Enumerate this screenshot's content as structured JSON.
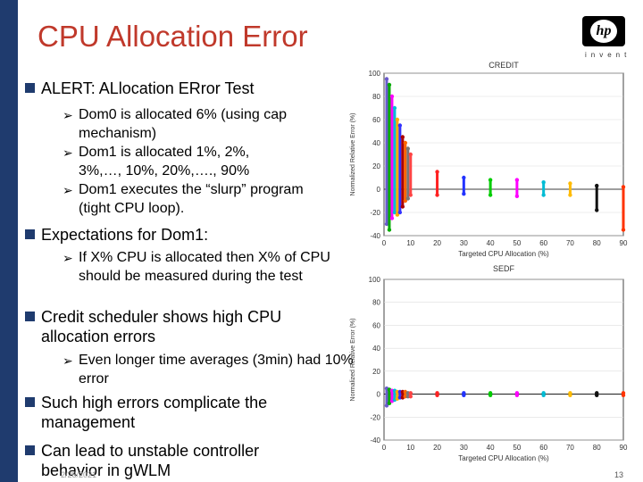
{
  "slide": {
    "title": "CPU Allocation Error",
    "logo_text": "hp",
    "logo_word": "invent",
    "date": "2/28/2021",
    "page_number": "13"
  },
  "bullets": [
    {
      "text": "ALERT:  ALlocation ERror Test",
      "sub": [
        "Dom0 is allocated 6% (using cap mechanism)",
        "Dom1 is allocated 1%, 2%, 3%,…, 10%, 20%,…., 90%",
        "Dom1 executes the “slurp” program (tight CPU loop)."
      ]
    },
    {
      "text": "Expectations for Dom1:",
      "sub": [
        "If X% CPU is allocated then X% of CPU should be measured during the test"
      ]
    },
    {
      "text": "Credit scheduler shows  high CPU allocation errors",
      "sub": [
        "Even longer time averages (3min) had 10% error"
      ]
    },
    {
      "text": " Such high errors complicate the management",
      "sub": []
    },
    {
      "text": "Can lead to unstable controller behavior in gWLM",
      "sub": []
    }
  ],
  "chart_data": [
    {
      "type": "scatter",
      "title": "CREDIT",
      "xlabel": "Targeted CPU Allocation (%)",
      "ylabel": "Normalized Relative Error (%)",
      "xlim": [
        0,
        90
      ],
      "ylim": [
        -40,
        100
      ],
      "xticks": [
        0,
        10,
        20,
        30,
        40,
        50,
        60,
        70,
        80,
        90
      ],
      "yticks": [
        -40,
        -20,
        0,
        20,
        40,
        60,
        80,
        100
      ],
      "series": [
        {
          "x": 1,
          "values": [
            -30,
            95
          ],
          "color": "#6a5acd"
        },
        {
          "x": 2,
          "values": [
            -35,
            90
          ],
          "color": "#00aa00"
        },
        {
          "x": 3,
          "values": [
            -25,
            80
          ],
          "color": "#ff00ff"
        },
        {
          "x": 4,
          "values": [
            -20,
            70
          ],
          "color": "#00bcd4"
        },
        {
          "x": 5,
          "values": [
            -22,
            60
          ],
          "color": "#ffaa00"
        },
        {
          "x": 6,
          "values": [
            -20,
            55
          ],
          "color": "#3333ff"
        },
        {
          "x": 7,
          "values": [
            -15,
            45
          ],
          "color": "#aa0000"
        },
        {
          "x": 8,
          "values": [
            -10,
            40
          ],
          "color": "#ff6600"
        },
        {
          "x": 9,
          "values": [
            -8,
            35
          ],
          "color": "#777777"
        },
        {
          "x": 10,
          "values": [
            -5,
            30
          ],
          "color": "#ff4444"
        },
        {
          "x": 20,
          "values": [
            -5,
            15
          ],
          "color": "#ff2222"
        },
        {
          "x": 30,
          "values": [
            -4,
            10
          ],
          "color": "#2233ff"
        },
        {
          "x": 40,
          "values": [
            -5,
            8
          ],
          "color": "#00cc00"
        },
        {
          "x": 50,
          "values": [
            -6,
            8
          ],
          "color": "#ff00ff"
        },
        {
          "x": 60,
          "values": [
            -5,
            6
          ],
          "color": "#00bcd4"
        },
        {
          "x": 70,
          "values": [
            -5,
            5
          ],
          "color": "#ffbb00"
        },
        {
          "x": 80,
          "values": [
            -18,
            3
          ],
          "color": "#111111"
        },
        {
          "x": 90,
          "values": [
            -35,
            2
          ],
          "color": "#ff3300"
        }
      ]
    },
    {
      "type": "scatter",
      "title": "SEDF",
      "xlabel": "Targeted  CPU Allocation (%)",
      "ylabel": "Normalized Relative Error (%)",
      "xlim": [
        0,
        90
      ],
      "ylim": [
        -40,
        100
      ],
      "xticks": [
        0,
        10,
        20,
        30,
        40,
        50,
        60,
        70,
        80,
        90
      ],
      "yticks": [
        -40,
        -20,
        0,
        20,
        40,
        60,
        80,
        100
      ],
      "series": [
        {
          "x": 1,
          "values": [
            -10,
            5
          ],
          "color": "#6a5acd"
        },
        {
          "x": 2,
          "values": [
            -8,
            4
          ],
          "color": "#00aa00"
        },
        {
          "x": 3,
          "values": [
            -6,
            3
          ],
          "color": "#ff00ff"
        },
        {
          "x": 4,
          "values": [
            -5,
            3
          ],
          "color": "#00bcd4"
        },
        {
          "x": 5,
          "values": [
            -4,
            2
          ],
          "color": "#ffaa00"
        },
        {
          "x": 6,
          "values": [
            -3,
            2
          ],
          "color": "#3333ff"
        },
        {
          "x": 7,
          "values": [
            -3,
            2
          ],
          "color": "#aa0000"
        },
        {
          "x": 8,
          "values": [
            -2,
            2
          ],
          "color": "#ff6600"
        },
        {
          "x": 9,
          "values": [
            -2,
            1
          ],
          "color": "#777777"
        },
        {
          "x": 10,
          "values": [
            -2,
            1
          ],
          "color": "#ff4444"
        },
        {
          "x": 20,
          "values": [
            -1,
            1
          ],
          "color": "#ff2222"
        },
        {
          "x": 30,
          "values": [
            -1,
            1
          ],
          "color": "#2233ff"
        },
        {
          "x": 40,
          "values": [
            -1,
            1
          ],
          "color": "#00cc00"
        },
        {
          "x": 50,
          "values": [
            -1,
            1
          ],
          "color": "#ff00ff"
        },
        {
          "x": 60,
          "values": [
            -1,
            1
          ],
          "color": "#00bcd4"
        },
        {
          "x": 70,
          "values": [
            -1,
            1
          ],
          "color": "#ffbb00"
        },
        {
          "x": 80,
          "values": [
            -1,
            1
          ],
          "color": "#111111"
        },
        {
          "x": 90,
          "values": [
            -1,
            1
          ],
          "color": "#ff3300"
        }
      ]
    }
  ]
}
